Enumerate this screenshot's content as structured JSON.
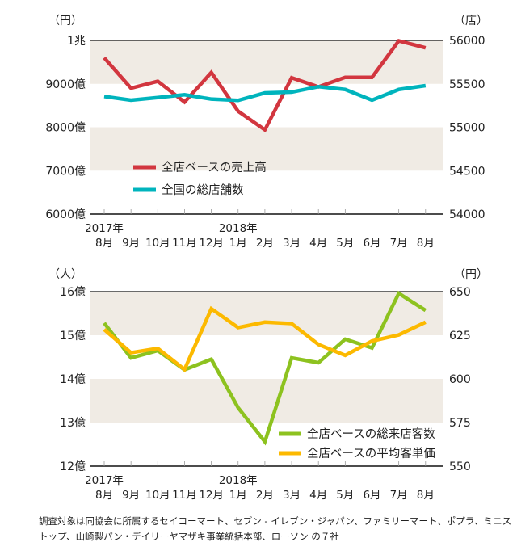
{
  "chart_data": [
    {
      "type": "line",
      "left_unit": "（円）",
      "right_unit": "（店）",
      "left_ticks": [
        "1兆",
        "9000億",
        "8000億",
        "7000億",
        "6000億"
      ],
      "left_range": [
        6000,
        10000
      ],
      "right_ticks": [
        "56000",
        "55500",
        "55000",
        "54500",
        "54000"
      ],
      "right_range": [
        54000,
        56000
      ],
      "year_labels": [
        "2017年",
        "2018年"
      ],
      "categories": [
        "8月",
        "9月",
        "10月",
        "11月",
        "12月",
        "1月",
        "2月",
        "3月",
        "4月",
        "5月",
        "6月",
        "7月",
        "8月"
      ],
      "series": [
        {
          "name": "全店ベースの売上高",
          "axis": "left",
          "color": "#d2363f",
          "values": [
            9600,
            8900,
            9060,
            8580,
            9260,
            8370,
            7940,
            9140,
            8930,
            9150,
            9150,
            9990,
            9830
          ]
        },
        {
          "name": "全国の総店舗数",
          "axis": "right",
          "color": "#00b4bd",
          "values": [
            55355,
            55312,
            55342,
            55374,
            55324,
            55309,
            55395,
            55405,
            55467,
            55435,
            55312,
            55435,
            55479
          ]
        }
      ]
    },
    {
      "type": "line",
      "left_unit": "（人）",
      "right_unit": "（円）",
      "left_ticks": [
        "16億",
        "15億",
        "14億",
        "13億",
        "12億"
      ],
      "left_range": [
        12,
        16
      ],
      "right_ticks": [
        "650",
        "625",
        "600",
        "575",
        "550"
      ],
      "right_range": [
        550,
        650
      ],
      "year_labels": [
        "2017年",
        "2018年"
      ],
      "categories": [
        "8月",
        "9月",
        "10月",
        "11月",
        "12月",
        "1月",
        "2月",
        "3月",
        "4月",
        "5月",
        "6月",
        "7月",
        "8月"
      ],
      "series": [
        {
          "name": "全店ベースの総来店客数",
          "axis": "left",
          "color": "#8dc21f",
          "values": [
            15.28,
            14.48,
            14.65,
            14.21,
            14.45,
            13.34,
            12.56,
            14.48,
            14.37,
            14.91,
            14.71,
            15.96,
            15.57
          ]
        },
        {
          "name": "全店ベースの平均客単価",
          "axis": "right",
          "color": "#fcb900",
          "values": [
            628.3,
            615,
            617.5,
            605.4,
            640.2,
            629.4,
            632.5,
            631.7,
            619.7,
            613.5,
            621.7,
            625.2,
            632.5
          ]
        }
      ]
    }
  ],
  "footnote": "調査対象は同協会に所属するセイコーマート、セブン - イレブン・ジャパン、ファミリーマート、ポプラ、ミニストップ、山崎製パン・デイリーヤマザキ事業統括本部、ローソン の７社"
}
